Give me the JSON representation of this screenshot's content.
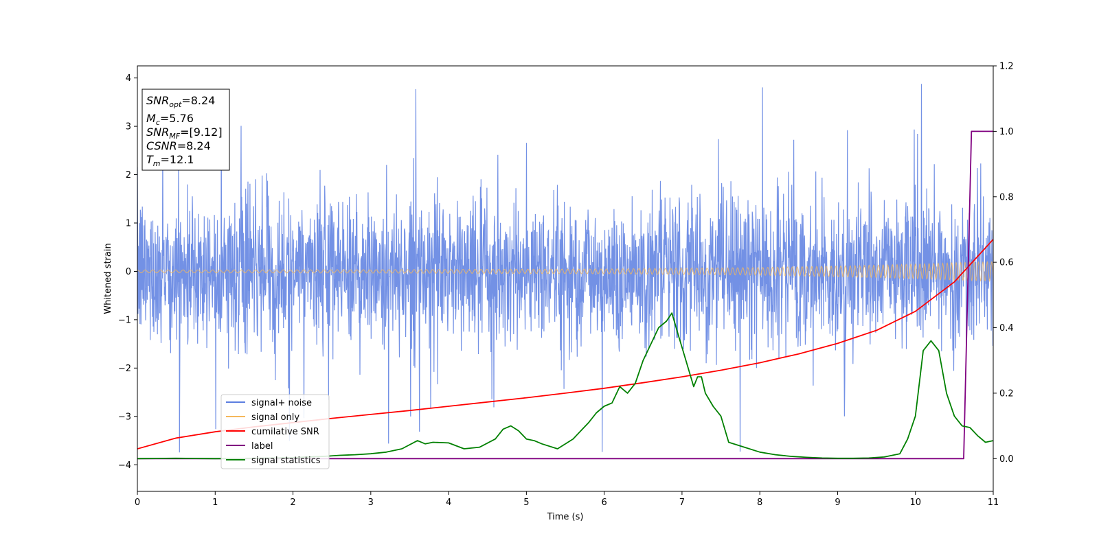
{
  "chart_data": {
    "type": "line",
    "title": "",
    "xlabel": "Time (s)",
    "ylabel": "Whitened strain",
    "y2label": "",
    "xlim": [
      0,
      11
    ],
    "ylim": [
      -4.55,
      4.25
    ],
    "y2lim": [
      -0.1,
      1.2
    ],
    "x_ticks": [
      "0",
      "1",
      "2",
      "3",
      "4",
      "5",
      "6",
      "7",
      "8",
      "9",
      "10",
      "11"
    ],
    "y_ticks": [
      "−4",
      "−3",
      "−2",
      "−1",
      "0",
      "1",
      "2",
      "3",
      "4"
    ],
    "y2_ticks": [
      "0.0",
      "0.2",
      "0.4",
      "0.6",
      "0.8",
      "1.0",
      "1.2"
    ],
    "grid": false,
    "legend_position": "lower-left",
    "annotation": {
      "lines": [
        {
          "main": "SNR",
          "sub": "opt",
          "rest": "=8.24"
        },
        {
          "main": "M",
          "sub": "c",
          "rest": "=5.76"
        },
        {
          "main": "SNR",
          "sub": "MF",
          "rest": "=[9.12]"
        },
        {
          "main": "CSNR",
          "sub": "",
          "rest": "=8.24"
        },
        {
          "main": "T",
          "sub": "m",
          "rest": "=12.1"
        }
      ]
    },
    "series": [
      {
        "name": "signal+ noise",
        "color": "#5b7ee0",
        "axis": "left",
        "description": "whitened noisy strain, amplitude roughly ±2 with spikes to ±3.9",
        "envelope": {
          "typical_max": 2.1,
          "typical_min": -2.1,
          "peak_max": 3.88,
          "peak_min": -4.17
        }
      },
      {
        "name": "signal only",
        "color": "#f5b85b",
        "axis": "left",
        "description": "chirp signal, amplitude growing from 0.03 at t=0 to 0.2 at t=11",
        "amplitude": {
          "x": [
            0,
            3,
            6,
            8,
            9,
            10,
            10.5,
            11
          ],
          "y": [
            0.03,
            0.035,
            0.05,
            0.08,
            0.11,
            0.15,
            0.18,
            0.2
          ]
        }
      },
      {
        "name": "cumilative SNR",
        "color": "#ff0000",
        "axis": "right",
        "x": [
          0,
          0.5,
          1,
          1.5,
          2,
          2.5,
          3,
          3.5,
          4,
          4.5,
          5,
          5.5,
          6,
          6.5,
          7,
          7.5,
          8,
          8.5,
          9,
          9.5,
          10,
          10.5,
          11
        ],
        "y": [
          0.03,
          0.063,
          0.082,
          0.097,
          0.11,
          0.123,
          0.135,
          0.147,
          0.16,
          0.173,
          0.186,
          0.2,
          0.215,
          0.232,
          0.25,
          0.27,
          0.293,
          0.32,
          0.352,
          0.392,
          0.45,
          0.54,
          0.67
        ]
      },
      {
        "name": "label",
        "color": "#800080",
        "axis": "right",
        "x": [
          0,
          10.62,
          10.72,
          11
        ],
        "y": [
          0,
          0,
          1,
          1
        ]
      },
      {
        "name": "signal statistics",
        "color": "#008000",
        "axis": "right",
        "x": [
          0,
          0.5,
          1,
          1.5,
          2,
          2.2,
          2.4,
          2.6,
          2.8,
          3,
          3.2,
          3.4,
          3.6,
          3.7,
          3.8,
          4,
          4.2,
          4.4,
          4.6,
          4.7,
          4.8,
          4.9,
          5,
          5.1,
          5.2,
          5.4,
          5.6,
          5.8,
          5.9,
          6,
          6.1,
          6.2,
          6.3,
          6.4,
          6.5,
          6.6,
          6.7,
          6.8,
          6.87,
          6.95,
          7.05,
          7.15,
          7.2,
          7.25,
          7.3,
          7.35,
          7.4,
          7.5,
          7.6,
          7.8,
          8,
          8.2,
          8.4,
          8.6,
          8.8,
          9,
          9.2,
          9.4,
          9.6,
          9.8,
          9.9,
          10,
          10.1,
          10.2,
          10.3,
          10.4,
          10.5,
          10.6,
          10.7,
          10.8,
          10.9,
          11
        ],
        "y": [
          0,
          0.001,
          0,
          0.001,
          0.003,
          0.005,
          0.007,
          0.01,
          0.012,
          0.015,
          0.02,
          0.03,
          0.055,
          0.045,
          0.05,
          0.048,
          0.03,
          0.035,
          0.06,
          0.09,
          0.1,
          0.085,
          0.06,
          0.055,
          0.045,
          0.03,
          0.06,
          0.11,
          0.14,
          0.16,
          0.17,
          0.22,
          0.2,
          0.23,
          0.3,
          0.35,
          0.4,
          0.42,
          0.445,
          0.38,
          0.3,
          0.22,
          0.25,
          0.25,
          0.2,
          0.18,
          0.16,
          0.13,
          0.05,
          0.035,
          0.02,
          0.012,
          0.007,
          0.004,
          0.002,
          0.001,
          0.001,
          0.002,
          0.005,
          0.015,
          0.06,
          0.13,
          0.33,
          0.36,
          0.33,
          0.2,
          0.13,
          0.1,
          0.095,
          0.07,
          0.05,
          0.055
        ]
      }
    ]
  }
}
